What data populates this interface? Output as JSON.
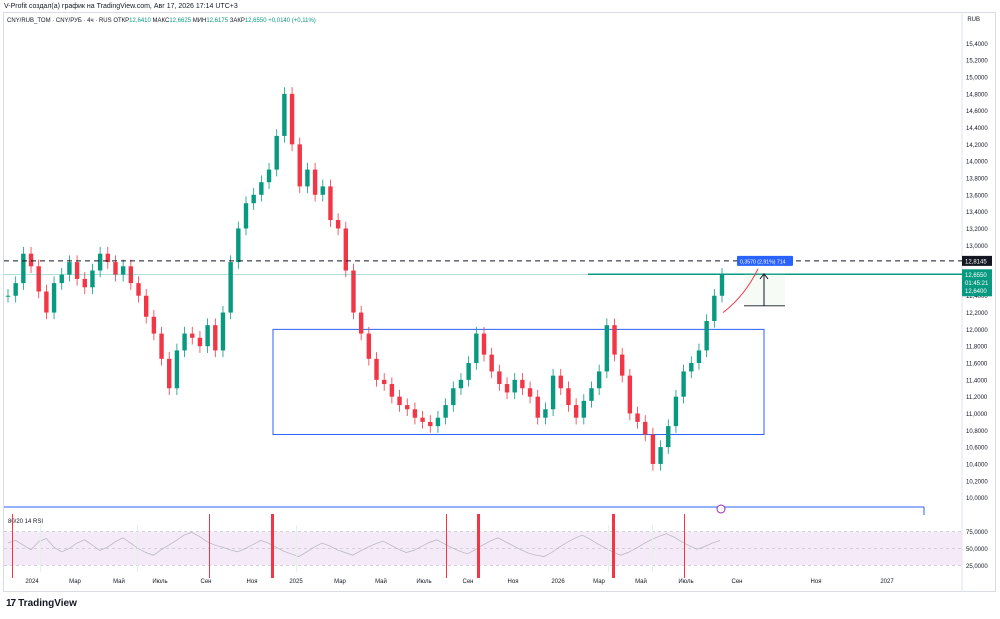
{
  "header": {
    "credit": "V-Profit создал(а) график на TradingView.com, Авг 17, 2026 17:14 UTC+3",
    "symbol": "CNY/RUB_TOM · CNY/РУБ · 4ч · RUS",
    "open_label": "ОТКР",
    "open_value": "12,6410",
    "high_label": "МАКС",
    "high_value": "12,6625",
    "low_label": "МИН",
    "low_value": "12,6175",
    "close_label": "ЗАКР",
    "close_value": "12,6550",
    "change": "+0,0140 (+0,11%)",
    "currency": "RUB"
  },
  "price_tags": {
    "resistance": "12,8145",
    "last": "12,6550",
    "countdown": "01:45:21",
    "prev": "12,6400"
  },
  "measure_label": "0,3570 (2,91%) 714",
  "rsi_label": "80/20 14 RSI",
  "footer": {
    "brand": "TradingView",
    "logo_mark": "17"
  },
  "colors": {
    "up": "#089981",
    "down": "#f23645",
    "box": "#2962ff",
    "teal": "#089981",
    "rsi_band": "#f3e5f5",
    "rsi_line": "#b2b5be"
  },
  "chart_data": {
    "type": "line",
    "title": "CNY/RUB_TOM · CNY/РУБ · 4ч · RUS",
    "xlabel": "",
    "ylabel": "",
    "x_ticks": [
      "2024",
      "Мар",
      "Май",
      "Июль",
      "Сен",
      "Ноя",
      "2025",
      "Мар",
      "Май",
      "Июль",
      "Сен",
      "Ноя",
      "2026",
      "Мар",
      "Май",
      "Июль",
      "Сен",
      "Ноя",
      "2027"
    ],
    "y_ticks": [
      "15,4000",
      "15,2000",
      "15,0000",
      "14,8000",
      "14,6000",
      "14,4000",
      "14,2000",
      "14,0000",
      "13,8000",
      "13,6000",
      "13,4000",
      "13,2000",
      "13,0000",
      "12,8000",
      "12,6000",
      "12,4000",
      "12,2000",
      "12,0000",
      "11,8000",
      "11,6000",
      "11,4000",
      "11,2000",
      "11,0000",
      "10,8000",
      "10,6000",
      "10,4000",
      "10,2000",
      "10,0000"
    ],
    "ylim": [
      9.9,
      15.5
    ],
    "grid": false,
    "series": [
      {
        "values": [
          12.4,
          12.55,
          12.9,
          12.75,
          12.45,
          12.2,
          12.55,
          12.65,
          12.8,
          12.6,
          12.5,
          12.7,
          12.9,
          12.8,
          12.65,
          12.75,
          12.55,
          12.4,
          12.15,
          11.95,
          11.65,
          11.3,
          11.75,
          11.95,
          11.9,
          11.8,
          12.05,
          11.75,
          12.2,
          12.8,
          13.2,
          13.5,
          13.6,
          13.75,
          13.9,
          14.3,
          14.8,
          14.2,
          13.7,
          13.9,
          13.6,
          13.7,
          13.3,
          13.2,
          12.7,
          12.2,
          11.95,
          11.65,
          11.4,
          11.35,
          11.2,
          11.1,
          11.05,
          10.95,
          10.9,
          10.85,
          10.95,
          11.1,
          11.3,
          11.4,
          11.6,
          11.95,
          11.7,
          11.5,
          11.35,
          11.25,
          11.4,
          11.3,
          11.2,
          10.95,
          11.05,
          11.45,
          11.3,
          11.1,
          10.95,
          11.15,
          11.3,
          11.5,
          12.05,
          11.7,
          11.45,
          11.0,
          10.9,
          10.75,
          10.4,
          10.6,
          10.85,
          11.2,
          11.5,
          11.6,
          11.75,
          12.1,
          12.4,
          12.65
        ]
      }
    ],
    "annotations": [
      {
        "type": "hline",
        "y": 12.8145,
        "style": "dashed"
      },
      {
        "type": "hline",
        "y": 12.655,
        "style": "solid"
      },
      {
        "type": "rectangle",
        "x0_tick": "2025",
        "x1_tick": "Июль",
        "y0": 10.75,
        "y1": 12.0
      },
      {
        "type": "measure",
        "value": "0,3570 (2,91%) 714"
      }
    ]
  },
  "rsi_data": {
    "label": "80/20 14 RSI",
    "y_ticks": [
      "75,0000",
      "50,0000",
      "25,0000"
    ],
    "ylim": [
      15,
      85
    ],
    "values": [
      58,
      62,
      55,
      48,
      60,
      65,
      52,
      45,
      50,
      58,
      63,
      55,
      47,
      52,
      60,
      66,
      58,
      50,
      44,
      40,
      48,
      55,
      62,
      70,
      74,
      68,
      60,
      55,
      52,
      48,
      45,
      50,
      56,
      62,
      58,
      52,
      46,
      42,
      38,
      45,
      52,
      58,
      54,
      48,
      44,
      40,
      46,
      52,
      57,
      61,
      55,
      49,
      44,
      47,
      53,
      59,
      63,
      57,
      51,
      46,
      42,
      48,
      55,
      61,
      66,
      60,
      54,
      48,
      43,
      40,
      38,
      44,
      52,
      59,
      65,
      70,
      64,
      57,
      51,
      45,
      40,
      44,
      50,
      57,
      63,
      68,
      72,
      67,
      60,
      54,
      49,
      53,
      58,
      62
    ]
  }
}
